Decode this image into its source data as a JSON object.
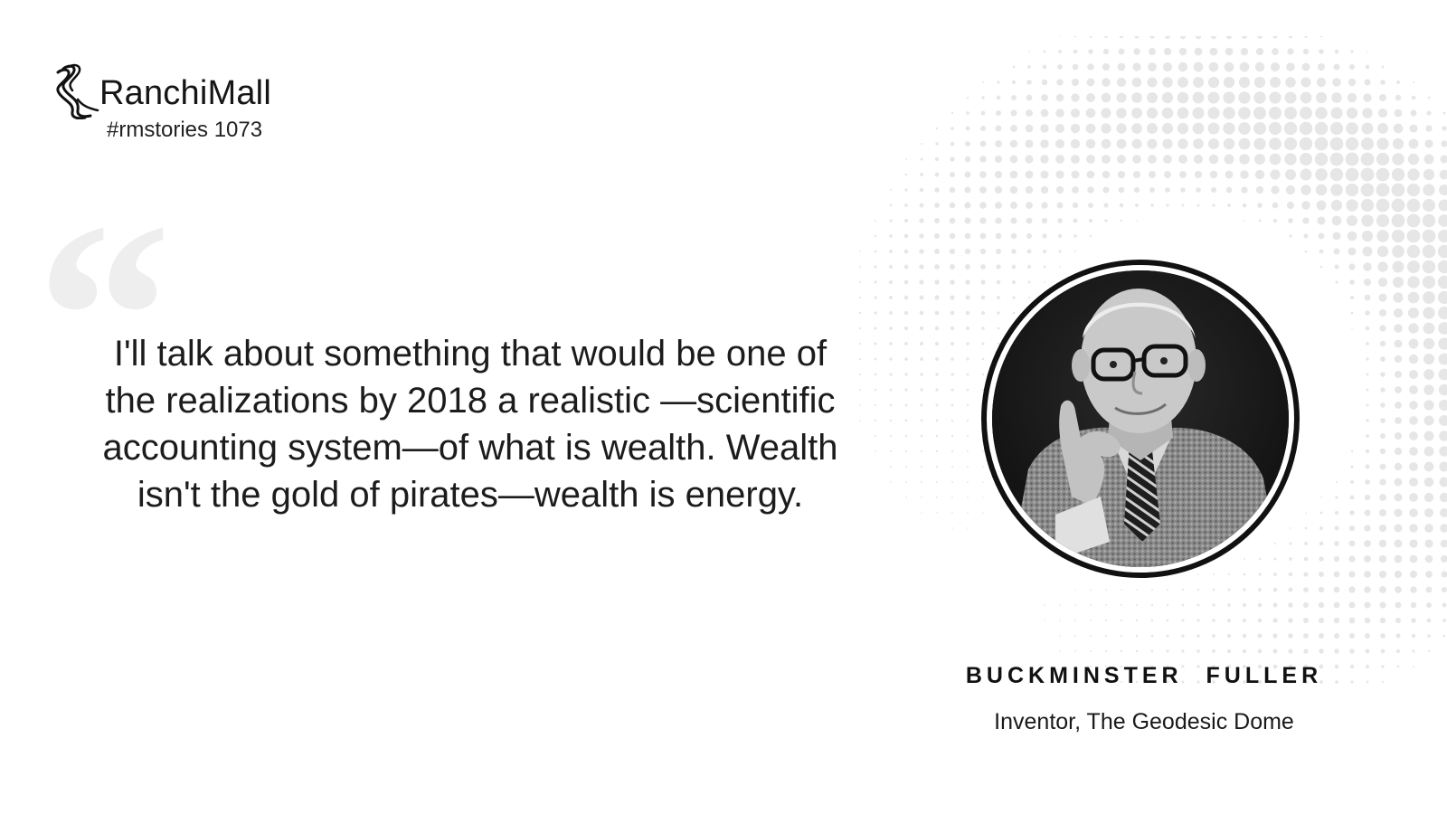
{
  "brand": {
    "name": "RanchiMall",
    "story_tag": "#rmstories 1073"
  },
  "quote": {
    "mark": "“",
    "text": "I'll talk about something that would be one of the realizations by 2018 a realistic —scientific accounting system—of what is wealth. Wealth isn't the gold of pirates—wealth is energy."
  },
  "person": {
    "name": "BUCKMINSTER FULLER",
    "role": "Inventor, The Geodesic Dome",
    "portrait_icon": "portrait-photo"
  },
  "colors": {
    "background": "#ffffff",
    "text": "#1c1c1c",
    "quote_mark": "#eeeeee",
    "halftone": "#e6e6e6"
  }
}
